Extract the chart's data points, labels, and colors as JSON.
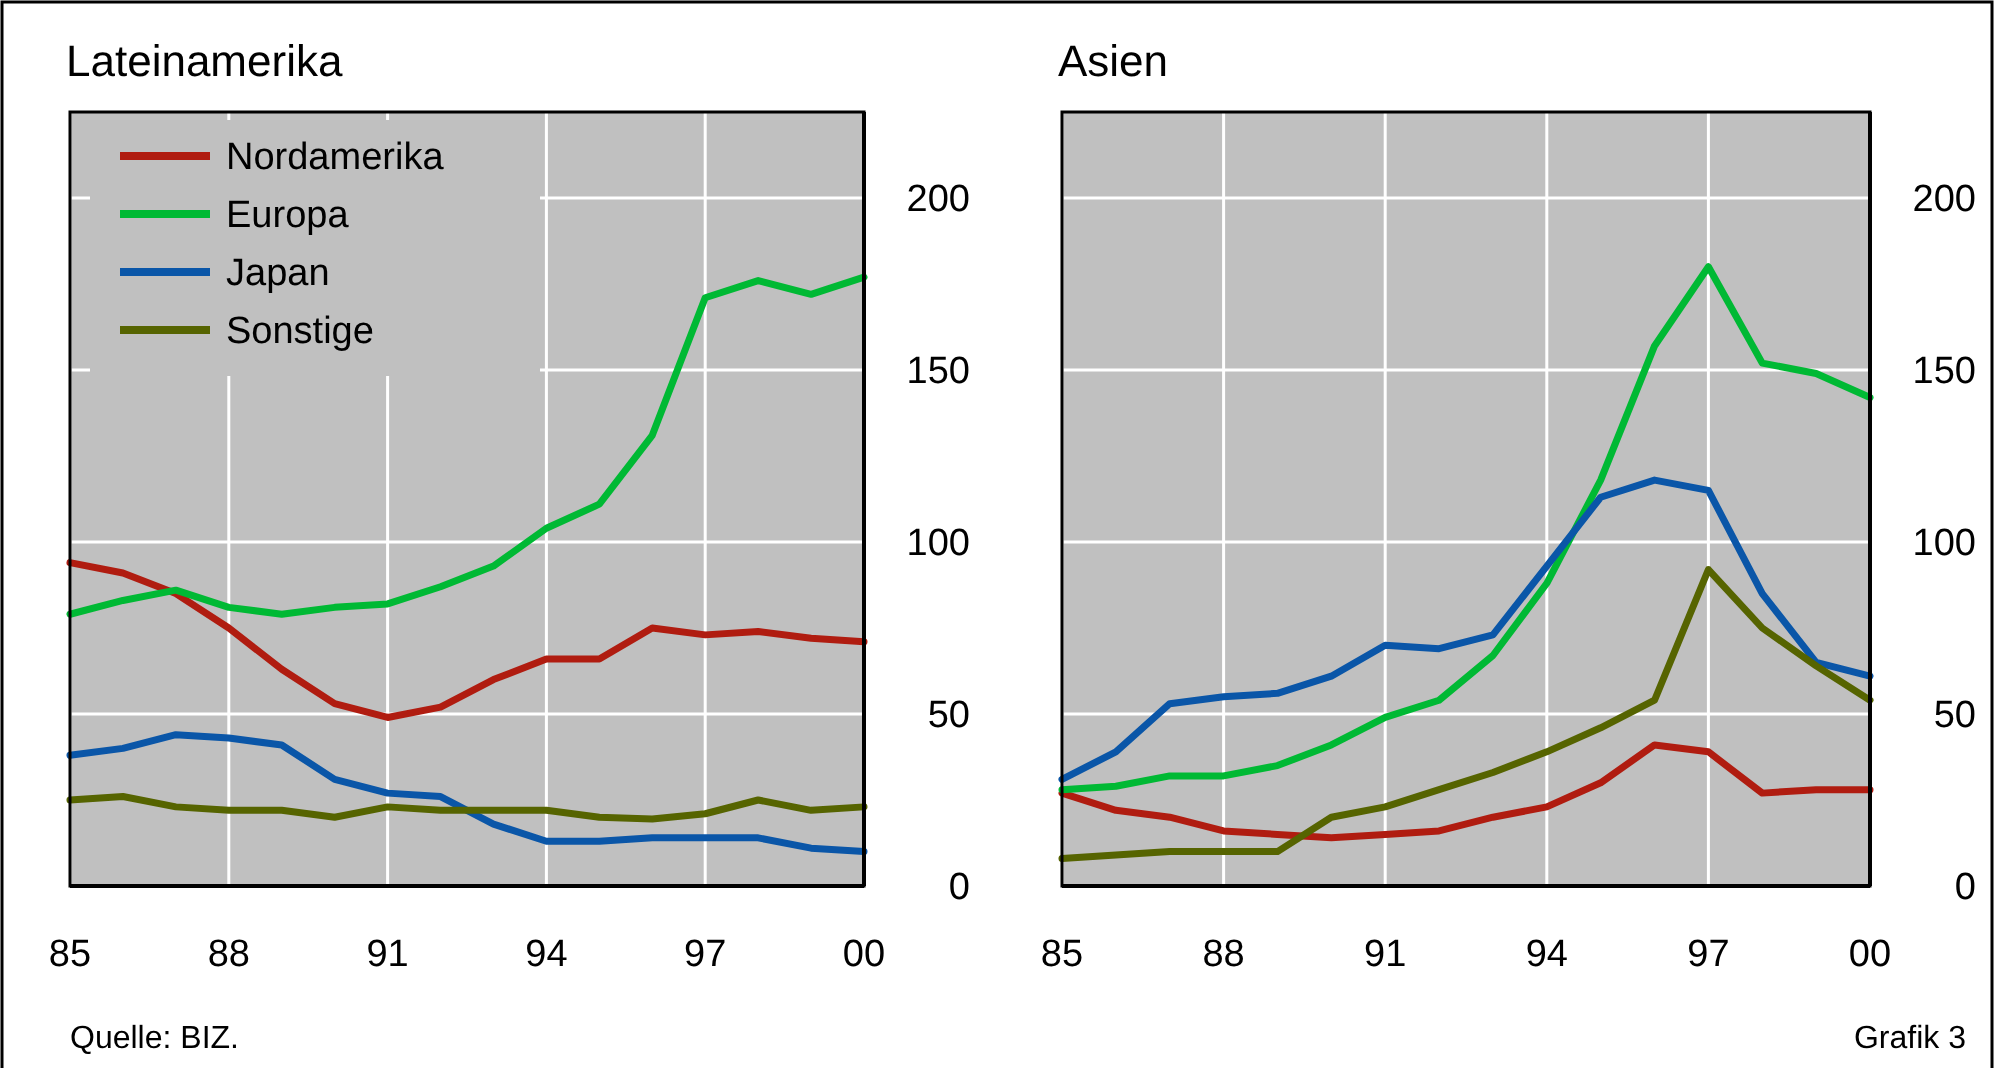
{
  "chart_data": [
    {
      "type": "line",
      "title": "Lateinamerika",
      "x": [
        1985,
        1986,
        1987,
        1988,
        1989,
        1990,
        1991,
        1992,
        1993,
        1994,
        1995,
        1996,
        1997,
        1998,
        1999,
        2000
      ],
      "xlim": [
        1985,
        2000
      ],
      "xticks": [
        {
          "value": 1985,
          "label": "85"
        },
        {
          "value": 1988,
          "label": "88"
        },
        {
          "value": 1991,
          "label": "91"
        },
        {
          "value": 1994,
          "label": "94"
        },
        {
          "value": 1997,
          "label": "97"
        },
        {
          "value": 2000,
          "label": "00"
        }
      ],
      "ylim": [
        0,
        225
      ],
      "yticks": [
        0,
        50,
        100,
        150,
        200
      ],
      "grid": true,
      "legend": "top left",
      "annotations": [
        "Quelle: BIZ."
      ],
      "series": [
        {
          "name": "Nordamerika",
          "color": "#b01c10",
          "values": [
            94,
            91,
            85,
            75,
            63,
            53,
            49,
            52,
            60,
            66,
            66,
            75,
            73,
            74,
            72,
            71
          ]
        },
        {
          "name": "Europa",
          "color": "#00b934",
          "values": [
            79,
            83,
            86,
            81,
            79,
            81,
            82,
            87,
            93,
            104,
            111,
            131,
            171,
            176,
            172,
            177
          ]
        },
        {
          "name": "Japan",
          "color": "#0a56a8",
          "values": [
            38,
            40,
            44,
            43,
            41,
            31,
            27,
            26,
            18,
            13,
            13,
            14,
            14,
            14,
            11,
            10
          ]
        },
        {
          "name": "Sonstige",
          "color": "#566400",
          "values": [
            25,
            26,
            23,
            22,
            22,
            20,
            23,
            22,
            22,
            22,
            20,
            19.5,
            21,
            25,
            22,
            23
          ]
        }
      ]
    },
    {
      "type": "line",
      "title": "Asien",
      "x": [
        1985,
        1986,
        1987,
        1988,
        1989,
        1990,
        1991,
        1992,
        1993,
        1994,
        1995,
        1996,
        1997,
        1998,
        1999,
        2000
      ],
      "xlim": [
        1985,
        2000
      ],
      "xticks": [
        {
          "value": 1985,
          "label": "85"
        },
        {
          "value": 1988,
          "label": "88"
        },
        {
          "value": 1991,
          "label": "91"
        },
        {
          "value": 1994,
          "label": "94"
        },
        {
          "value": 1997,
          "label": "97"
        },
        {
          "value": 2000,
          "label": "00"
        }
      ],
      "ylim": [
        0,
        225
      ],
      "yticks": [
        0,
        50,
        100,
        150,
        200
      ],
      "grid": true,
      "annotations": [
        "Grafik 3"
      ],
      "series": [
        {
          "color": "#b01c10",
          "values": [
            27,
            22,
            20,
            16,
            15,
            14,
            15,
            16,
            20,
            23,
            30,
            41,
            39,
            27,
            28,
            28
          ]
        },
        {
          "color": "#00b934",
          "values": [
            28,
            29,
            32,
            32,
            35,
            41,
            49,
            54,
            67,
            88,
            118,
            157,
            180,
            152,
            149,
            142
          ]
        },
        {
          "color": "#0a56a8",
          "values": [
            31,
            39,
            53,
            55,
            56,
            61,
            70,
            69,
            73,
            93,
            113,
            118,
            115,
            85,
            65,
            61
          ]
        },
        {
          "color": "#566400",
          "values": [
            8,
            9,
            10,
            10,
            10,
            20,
            23,
            28,
            33,
            39,
            46,
            54,
            92,
            75,
            64,
            54
          ]
        }
      ]
    }
  ]
}
